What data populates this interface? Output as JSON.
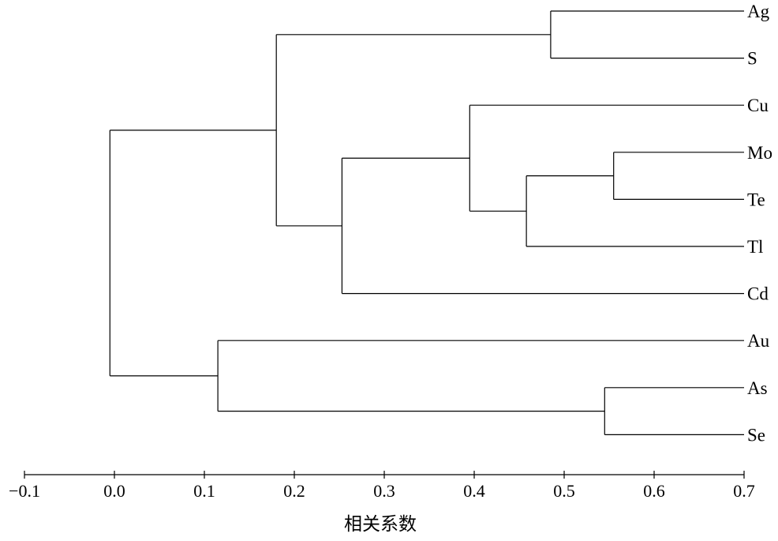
{
  "chart_data": {
    "type": "dendrogram",
    "orientation": "horizontal",
    "xlabel": "相关系数",
    "xlim": [
      -0.1,
      0.7
    ],
    "xticks": [
      -0.1,
      0.0,
      0.1,
      0.2,
      0.3,
      0.4,
      0.5,
      0.6,
      0.7
    ],
    "xtick_labels": [
      "−0.1",
      "0.0",
      "0.1",
      "0.2",
      "0.3",
      "0.4",
      "0.5",
      "0.6",
      "0.7"
    ],
    "leaves": [
      "Ag",
      "S",
      "Cu",
      "Mo",
      "Te",
      "Tl",
      "Cd",
      "Au",
      "As",
      "Se"
    ],
    "merges": [
      {
        "id": "Ag-S",
        "children": [
          "Ag",
          "S"
        ],
        "height": 0.485
      },
      {
        "id": "Mo-Te",
        "children": [
          "Mo",
          "Te"
        ],
        "height": 0.555
      },
      {
        "id": "Mo-Te-Tl",
        "children": [
          "Mo-Te",
          "Tl"
        ],
        "height": 0.458
      },
      {
        "id": "Cu-Mo-Te-Tl",
        "children": [
          "Cu",
          "Mo-Te-Tl"
        ],
        "height": 0.395
      },
      {
        "id": "Cu-Mo-Te-Tl-Cd",
        "children": [
          "Cu-Mo-Te-Tl",
          "Cd"
        ],
        "height": 0.253
      },
      {
        "id": "Ag-S-Cu-Mo-Te-Tl-Cd",
        "children": [
          "Ag-S",
          "Cu-Mo-Te-Tl-Cd"
        ],
        "height": 0.18
      },
      {
        "id": "As-Se",
        "children": [
          "As",
          "Se"
        ],
        "height": 0.545
      },
      {
        "id": "Au-As-Se",
        "children": [
          "Au",
          "As-Se"
        ],
        "height": 0.115
      },
      {
        "id": "root",
        "children": [
          "Ag-S-Cu-Mo-Te-Tl-Cd",
          "Au-As-Se"
        ],
        "height": -0.005
      }
    ],
    "leaf_height": 0.7,
    "grid": false,
    "legend": "none"
  }
}
